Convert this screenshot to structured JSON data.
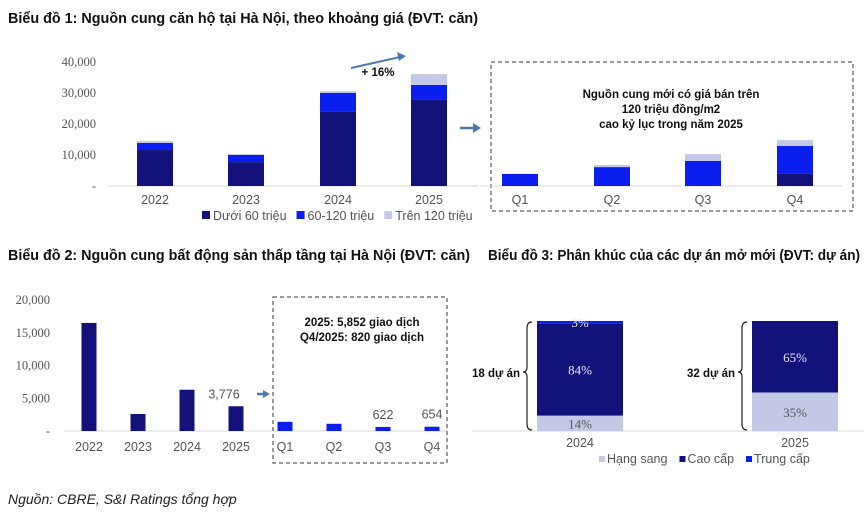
{
  "titles": {
    "chart1": "Biểu đồ 1: Nguồn cung căn hộ tại Hà Nội, theo khoảng giá (ĐVT: căn)",
    "chart2": "Biểu đồ 2: Nguồn cung bất động sản thấp tầng tại Hà Nội (ĐVT: căn)",
    "chart3": "Biểu đồ 3: Phân khúc của các dự án mở mới (ĐVT: dự án)"
  },
  "source": "Nguồn: CBRE, S&I Ratings tổng hợp",
  "chart_data": [
    {
      "type": "bar",
      "stacked": true,
      "title": "Biểu đồ 1: Nguồn cung căn hộ tại Hà Nội, theo khoảng giá (ĐVT: căn)",
      "categories": [
        "2022",
        "2023",
        "2024",
        "2025"
      ],
      "quarter_categories": [
        "Q1",
        "Q2",
        "Q3",
        "Q4"
      ],
      "y_ticks": [
        "-",
        "10,000",
        "20,000",
        "30,000",
        "40,000"
      ],
      "ylim": [
        0,
        40000
      ],
      "legend_position": "bottom",
      "series": [
        {
          "name": "Dưới 60 triệu",
          "color": "#12127a",
          "values": [
            11600,
            7700,
            23900,
            28000
          ],
          "quarter_values": [
            0,
            0,
            0,
            3900
          ]
        },
        {
          "name": "60-120 triệu",
          "color": "#0a1ef0",
          "values": [
            2300,
            2300,
            6100,
            4600
          ],
          "quarter_values": [
            3900,
            6100,
            8100,
            9000
          ]
        },
        {
          "name": "Trên 120 triệu",
          "color": "#c5c9e8",
          "values": [
            600,
            300,
            600,
            3500
          ],
          "quarter_values": [
            0,
            700,
            2200,
            1900
          ]
        }
      ],
      "annotations": {
        "growth": "+ 16%",
        "box_note": [
          "Nguồn cung mới có giá bán trên",
          "120 triệu đồng/m2",
          "cao kỷ lục trong năm 2025"
        ]
      }
    },
    {
      "type": "bar",
      "title": "Biểu đồ 2: Nguồn cung bất động sản thấp tầng tại Hà Nội (ĐVT: căn)",
      "categories": [
        "2022",
        "2023",
        "2024",
        "2025",
        "Q1",
        "Q2",
        "Q3",
        "Q4"
      ],
      "values": [
        16500,
        2600,
        6300,
        3776,
        1400,
        1100,
        622,
        654
      ],
      "colors": [
        "#12127a",
        "#12127a",
        "#12127a",
        "#12127a",
        "#0a1ef0",
        "#0a1ef0",
        "#0a1ef0",
        "#0a1ef0"
      ],
      "data_labels": [
        "",
        "",
        "",
        "3,776",
        "",
        "",
        "622",
        "654"
      ],
      "y_ticks": [
        "-",
        "5,000",
        "10,000",
        "15,000",
        "20,000"
      ],
      "ylim": [
        0,
        20000
      ],
      "annotations": {
        "box_note": [
          "2025: 5,852 giao dịch",
          "Q4/2025: 820 giao dịch"
        ]
      }
    },
    {
      "type": "bar",
      "stacked": true,
      "percent": true,
      "title": "Biểu đồ 3: Phân khúc của các dự án mở mới (ĐVT: dự án)",
      "categories": [
        "2024",
        "2025"
      ],
      "legend_position": "bottom",
      "series": [
        {
          "name": "Hạng sang",
          "color": "#c5c9e8",
          "values": [
            14,
            35
          ],
          "labels": [
            "14%",
            "35%"
          ]
        },
        {
          "name": "Cao cấp",
          "color": "#12127a",
          "values": [
            84,
            65
          ],
          "labels": [
            "84%",
            "65%"
          ]
        },
        {
          "name": "Trung cấp",
          "color": "#0a1ef0",
          "values": [
            3,
            0
          ],
          "labels": [
            "3%",
            ""
          ]
        }
      ],
      "bracket_labels": [
        "18 dự án",
        "32 dự án"
      ]
    }
  ]
}
